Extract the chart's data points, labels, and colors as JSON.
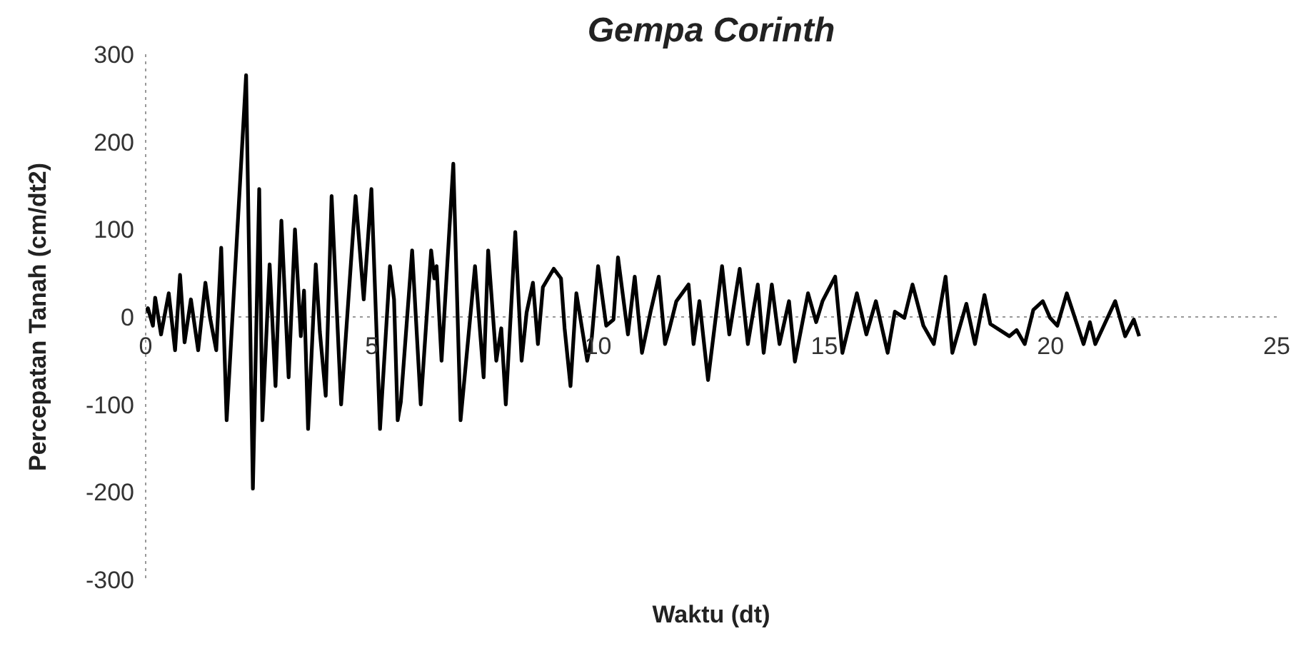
{
  "chart_data": {
    "type": "line",
    "title": "Gempa Corinth",
    "xlabel": "Waktu (dt)",
    "ylabel": "Percepatan Tanah (cm/dt2)",
    "xlim": [
      0,
      25
    ],
    "xticks": [
      0,
      5,
      10,
      15,
      20,
      25
    ],
    "ylim": [
      -300,
      300
    ],
    "yticks": [
      -300,
      -200,
      -100,
      0,
      100,
      200,
      300
    ],
    "grid": false,
    "ref_lines": [
      {
        "axis": "y",
        "value": 0,
        "color": "#999999",
        "line_style": "dotted"
      }
    ],
    "legend": false,
    "marker": "none",
    "line_style": "solid",
    "series": [
      {
        "color": "#000000",
        "x": [
          0,
          0.05,
          0.16,
          0.21,
          0.34,
          0.51,
          0.65,
          0.76,
          0.86,
          1.0,
          1.16,
          1.32,
          1.42,
          1.56,
          1.67,
          1.79,
          2.22,
          2.37,
          2.51,
          2.58,
          2.74,
          2.87,
          3.0,
          3.16,
          3.3,
          3.43,
          3.5,
          3.59,
          3.76,
          3.85,
          3.98,
          4.11,
          4.32,
          4.64,
          4.82,
          4.99,
          5.18,
          5.4,
          5.49,
          5.57,
          5.64,
          5.89,
          6.08,
          6.31,
          6.38,
          6.43,
          6.54,
          6.8,
          6.96,
          7.28,
          7.47,
          7.57,
          7.75,
          7.86,
          7.96,
          8.17,
          8.31,
          8.42,
          8.56,
          8.67,
          8.78,
          9.02,
          9.18,
          9.26,
          9.39,
          9.52,
          9.76,
          9.86,
          10.0,
          10.18,
          10.34,
          10.44,
          10.66,
          10.81,
          10.97,
          11.16,
          11.34,
          11.48,
          11.58,
          11.73,
          12.0,
          12.11,
          12.24,
          12.43,
          12.74,
          12.9,
          13.13,
          13.31,
          13.53,
          13.66,
          13.84,
          14.01,
          14.22,
          14.35,
          14.64,
          14.82,
          14.96,
          15.24,
          15.4,
          15.72,
          15.93,
          16.14,
          16.4,
          16.56,
          16.77,
          16.95,
          17.19,
          17.42,
          17.68,
          17.83,
          18.14,
          18.33,
          18.54,
          18.67,
          19.09,
          19.25,
          19.43,
          19.62,
          19.83,
          19.99,
          20.15,
          20.36,
          20.73,
          20.87,
          20.99,
          21.43,
          21.65,
          21.84,
          21.96
        ],
        "values": [
          5,
          10,
          -10,
          22,
          -20,
          27,
          -38,
          48,
          -29,
          20,
          -38,
          39,
          0,
          -38,
          79,
          -118,
          276,
          -196,
          146,
          -118,
          60,
          -79,
          110,
          -69,
          100,
          -22,
          30,
          -128,
          60,
          -17,
          -90,
          138,
          -100,
          138,
          20,
          146,
          -128,
          58,
          20,
          -118,
          -97,
          76,
          -100,
          76,
          44,
          58,
          -50,
          175,
          -118,
          58,
          -69,
          76,
          -50,
          -13,
          -100,
          97,
          -50,
          5,
          39,
          -31,
          34,
          55,
          44,
          -13,
          -79,
          27,
          -50,
          -24,
          58,
          -10,
          -3,
          68,
          -20,
          46,
          -41,
          6,
          46,
          -31,
          -13,
          18,
          37,
          -31,
          18,
          -72,
          58,
          -20,
          55,
          -31,
          37,
          -41,
          37,
          -31,
          18,
          -51,
          27,
          -6,
          18,
          46,
          -41,
          27,
          -20,
          18,
          -41,
          6,
          -1,
          37,
          -10,
          -31,
          46,
          -41,
          15,
          -31,
          25,
          -8,
          -22,
          -15,
          -31,
          8,
          18,
          -1,
          -10,
          27,
          -31,
          -6,
          -31,
          18,
          -22,
          -3,
          -22
        ]
      }
    ]
  }
}
